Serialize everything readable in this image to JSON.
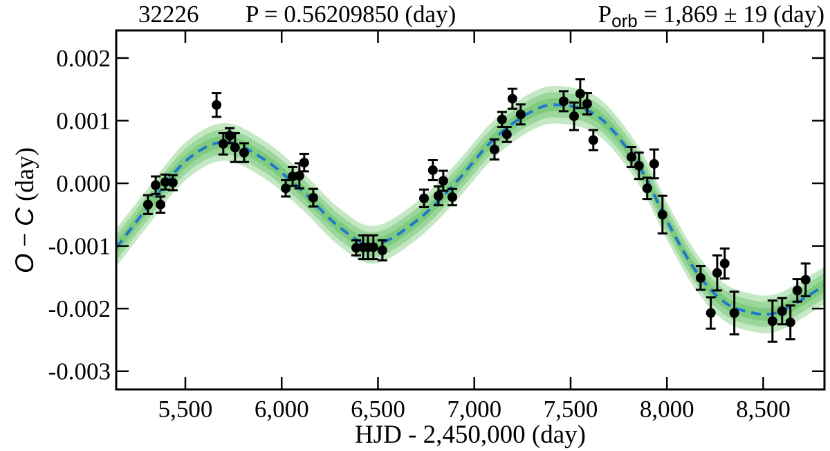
{
  "chart_data": {
    "type": "scatter",
    "title_parts": {
      "id": "32226",
      "period": "P = 0.56209850 (day)",
      "porb_prefix": "P",
      "porb_sub": "orb",
      "porb_value": " = 1,869 ± 19 (day)"
    },
    "xlabel": "HJD - 2,450,000 (day)",
    "ylabel": {
      "o": "O",
      "minus": " − ",
      "c": "C",
      "unit": " (day)"
    },
    "xlim": [
      5141,
      8818
    ],
    "ylim": [
      -0.00329,
      0.00244
    ],
    "xticks": [
      5500,
      6000,
      6500,
      7000,
      7500,
      8000,
      8500
    ],
    "xtick_labels": [
      "5,500",
      "6,000",
      "6,500",
      "7,000",
      "7,500",
      "8,000",
      "8,500"
    ],
    "yticks": [
      0.002,
      0.001,
      0.0,
      -0.001,
      -0.002,
      -0.003
    ],
    "ytick_labels": [
      "0.002",
      "0.001",
      "0.000",
      "-0.001",
      "-0.002",
      "-0.003"
    ],
    "grid": false,
    "colors": {
      "points": "#000000",
      "model": "#1f77d0",
      "band": "#3cae3c"
    },
    "points": [
      {
        "x": 5306,
        "y": -0.00034,
        "err": 0.00015
      },
      {
        "x": 5346,
        "y": -3e-05,
        "err": 0.00014
      },
      {
        "x": 5371,
        "y": -0.00034,
        "err": 0.00013
      },
      {
        "x": 5396,
        "y": 2e-05,
        "err": 0.00012
      },
      {
        "x": 5435,
        "y": 1e-05,
        "err": 0.00012
      },
      {
        "x": 5662,
        "y": 0.00125,
        "err": 0.00019
      },
      {
        "x": 5697,
        "y": 0.00063,
        "err": 0.00017
      },
      {
        "x": 5730,
        "y": 0.00076,
        "err": 0.00012
      },
      {
        "x": 5758,
        "y": 0.00057,
        "err": 0.00023
      },
      {
        "x": 5805,
        "y": 0.00049,
        "err": 0.00015
      },
      {
        "x": 6021,
        "y": -8e-05,
        "err": 0.00013
      },
      {
        "x": 6057,
        "y": 0.00011,
        "err": 0.00015
      },
      {
        "x": 6092,
        "y": 0.00012,
        "err": 0.0002
      },
      {
        "x": 6117,
        "y": 0.00033,
        "err": 0.00014
      },
      {
        "x": 6164,
        "y": -0.00023,
        "err": 0.00014
      },
      {
        "x": 6387,
        "y": -0.00103,
        "err": 0.00012
      },
      {
        "x": 6423,
        "y": -0.00102,
        "err": 0.00019
      },
      {
        "x": 6448,
        "y": -0.00102,
        "err": 0.00019
      },
      {
        "x": 6476,
        "y": -0.00102,
        "err": 0.00019
      },
      {
        "x": 6523,
        "y": -0.00107,
        "err": 0.00016
      },
      {
        "x": 6739,
        "y": -0.00024,
        "err": 0.00014
      },
      {
        "x": 6785,
        "y": 0.00021,
        "err": 0.00016
      },
      {
        "x": 6814,
        "y": -0.0002,
        "err": 0.00015
      },
      {
        "x": 6839,
        "y": 4e-05,
        "err": 0.00016
      },
      {
        "x": 6886,
        "y": -0.00022,
        "err": 0.00013
      },
      {
        "x": 7105,
        "y": 0.00054,
        "err": 0.00016
      },
      {
        "x": 7144,
        "y": 0.00102,
        "err": 0.00012
      },
      {
        "x": 7169,
        "y": 0.00078,
        "err": 0.00012
      },
      {
        "x": 7198,
        "y": 0.00135,
        "err": 0.00016
      },
      {
        "x": 7241,
        "y": 0.0011,
        "err": 0.00016
      },
      {
        "x": 7464,
        "y": 0.00131,
        "err": 0.00016
      },
      {
        "x": 7518,
        "y": 0.00107,
        "err": 0.00022
      },
      {
        "x": 7550,
        "y": 0.00143,
        "err": 0.00023
      },
      {
        "x": 7586,
        "y": 0.00127,
        "err": 0.00017
      },
      {
        "x": 7618,
        "y": 0.00069,
        "err": 0.00016
      },
      {
        "x": 7816,
        "y": 0.00042,
        "err": 0.00016
      },
      {
        "x": 7855,
        "y": 0.00028,
        "err": 0.00021
      },
      {
        "x": 7898,
        "y": -8e-05,
        "err": 0.00017
      },
      {
        "x": 7934,
        "y": 0.00031,
        "err": 0.00023
      },
      {
        "x": 7977,
        "y": -0.0005,
        "err": 0.0003
      },
      {
        "x": 8175,
        "y": -0.00151,
        "err": 0.00019
      },
      {
        "x": 8228,
        "y": -0.00207,
        "err": 0.00025
      },
      {
        "x": 8261,
        "y": -0.00143,
        "err": 0.00028
      },
      {
        "x": 8300,
        "y": -0.00128,
        "err": 0.00024
      },
      {
        "x": 8350,
        "y": -0.00207,
        "err": 0.00034
      },
      {
        "x": 8548,
        "y": -0.0022,
        "err": 0.00033
      },
      {
        "x": 8598,
        "y": -0.00204,
        "err": 0.00021
      },
      {
        "x": 8641,
        "y": -0.00222,
        "err": 0.00027
      },
      {
        "x": 8677,
        "y": -0.00171,
        "err": 0.00018
      },
      {
        "x": 8720,
        "y": -0.00154,
        "err": 0.00026
      }
    ],
    "model_curve": {
      "x": [
        5141,
        5300,
        5500,
        5700,
        5900,
        6100,
        6300,
        6480,
        6700,
        6900,
        7100,
        7300,
        7450,
        7650,
        7850,
        8000,
        8150,
        8300,
        8450,
        8550,
        8650,
        8818
      ],
      "y": [
        -0.00103,
        -0.0004,
        0.00035,
        0.00066,
        0.0004,
        -0.0001,
        -0.0007,
        -0.00098,
        -0.0006,
        0.0,
        0.0007,
        0.00115,
        0.00125,
        0.00105,
        0.0003,
        -0.0006,
        -0.0014,
        -0.0019,
        -0.00207,
        -0.00208,
        -0.00195,
        -0.00163
      ]
    },
    "confidence_bands": [
      0.0001,
      0.0002,
      0.0003
    ]
  }
}
